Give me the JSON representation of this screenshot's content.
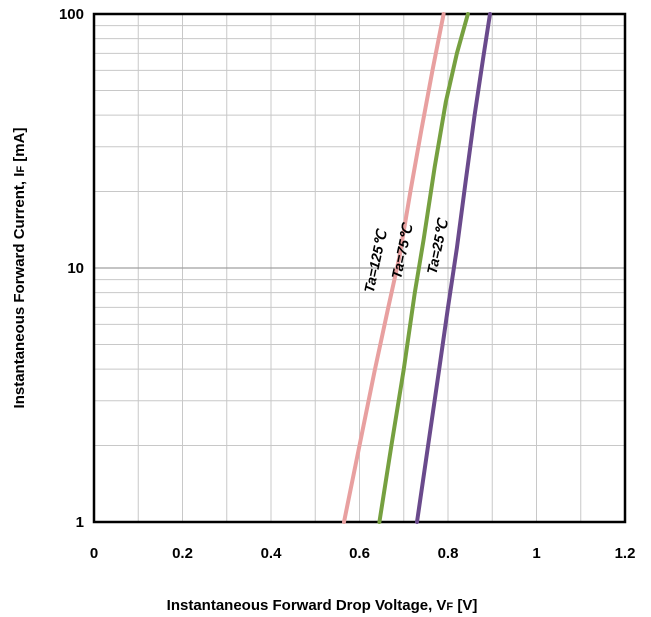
{
  "chart_data": {
    "type": "line",
    "xlabel": {
      "prefix": "Instantaneous Forward Drop Voltage, V",
      "subscript": "F",
      "suffix": " [V]"
    },
    "ylabel": {
      "prefix": "Instantaneous Forward Current, I",
      "subscript": "F",
      "suffix": " [mA]"
    },
    "xlim": [
      0,
      1.2
    ],
    "ylim": [
      1,
      100
    ],
    "yscale": "log",
    "x_ticks": [
      "0",
      "0.2",
      "0.4",
      "0.6",
      "0.8",
      "1",
      "1.2"
    ],
    "y_ticks": [
      "1",
      "10",
      "100"
    ],
    "grid": true,
    "series": [
      {
        "name": "Ta=125℃",
        "color": "#e8a0a0",
        "points": [
          [
            0.565,
            1
          ],
          [
            0.6,
            2
          ],
          [
            0.635,
            4
          ],
          [
            0.665,
            7
          ],
          [
            0.69,
            11
          ],
          [
            0.715,
            20
          ],
          [
            0.74,
            35
          ],
          [
            0.765,
            60
          ],
          [
            0.79,
            100
          ]
        ]
      },
      {
        "name": "Ta=75℃",
        "color": "#76a040",
        "points": [
          [
            0.645,
            1
          ],
          [
            0.672,
            2
          ],
          [
            0.7,
            4
          ],
          [
            0.725,
            8
          ],
          [
            0.745,
            13
          ],
          [
            0.77,
            25
          ],
          [
            0.795,
            45
          ],
          [
            0.82,
            70
          ],
          [
            0.845,
            100
          ]
        ]
      },
      {
        "name": "Ta=25℃",
        "color": "#6a4a8c",
        "points": [
          [
            0.73,
            1
          ],
          [
            0.755,
            2
          ],
          [
            0.78,
            4
          ],
          [
            0.8,
            7
          ],
          [
            0.82,
            12
          ],
          [
            0.84,
            22
          ],
          [
            0.86,
            40
          ],
          [
            0.88,
            68
          ],
          [
            0.895,
            100
          ]
        ]
      }
    ]
  }
}
